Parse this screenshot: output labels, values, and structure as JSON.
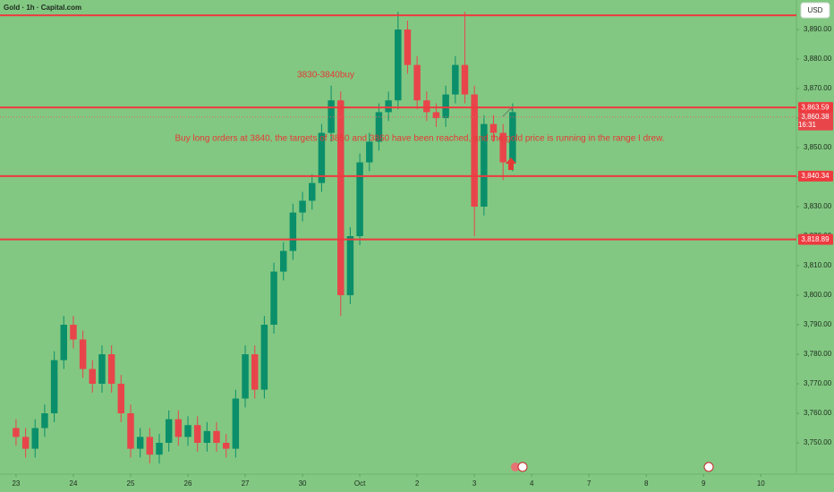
{
  "chart_data": {
    "type": "candlestick",
    "title": "Gold · 1h · Capital.com",
    "currency": "USD",
    "annotations": [
      "3830-3840buy",
      "Buy long orders at 3840, the targets of 3850 and 3860 have been reached, and the gold price is running in the range I drew."
    ],
    "x": [
      0,
      0.167,
      0.333,
      0.5,
      0.667,
      0.833,
      1,
      1.167,
      1.333,
      1.5,
      1.667,
      1.833,
      2,
      2.167,
      2.333,
      2.5,
      2.667,
      2.833,
      3,
      3.167,
      3.333,
      3.5,
      3.667,
      3.833,
      4,
      4.167,
      4.333,
      4.5,
      4.667,
      4.833,
      5,
      5.167,
      5.333,
      5.5,
      5.667,
      5.833,
      6,
      6.167,
      6.333,
      6.5,
      6.667,
      6.833,
      7,
      7.167,
      7.333,
      7.5,
      7.667,
      7.833,
      8,
      8.167,
      8.333,
      8.5,
      8.667
    ],
    "open": [
      3755,
      3752,
      3748,
      3755,
      3760,
      3778,
      3790,
      3785,
      3775,
      3770,
      3780,
      3770,
      3760,
      3748,
      3752,
      3746,
      3750,
      3758,
      3752,
      3756,
      3750,
      3754,
      3750,
      3748,
      3765,
      3780,
      3768,
      3790,
      3808,
      3815,
      3828,
      3832,
      3838,
      3855,
      3866,
      3800,
      3820,
      3845,
      3852,
      3862,
      3866,
      3890,
      3878,
      3866,
      3862,
      3860,
      3868,
      3878,
      3868,
      3830,
      3858,
      3855,
      3845
    ],
    "high": [
      3758,
      3755,
      3758,
      3763,
      3781,
      3793,
      3793,
      3788,
      3778,
      3783,
      3783,
      3773,
      3763,
      3755,
      3755,
      3753,
      3761,
      3761,
      3759,
      3759,
      3757,
      3757,
      3753,
      3768,
      3783,
      3783,
      3793,
      3811,
      3818,
      3831,
      3835,
      3841,
      3858,
      3871,
      3869,
      3823,
      3848,
      3855,
      3865,
      3869,
      3896,
      3893,
      3881,
      3869,
      3865,
      3871,
      3881,
      3896,
      3871,
      3861,
      3861,
      3858,
      3865
    ],
    "low": [
      3749,
      3745,
      3745,
      3752,
      3757,
      3775,
      3782,
      3772,
      3767,
      3767,
      3767,
      3757,
      3745,
      3745,
      3743,
      3743,
      3747,
      3749,
      3749,
      3747,
      3747,
      3747,
      3745,
      3745,
      3762,
      3765,
      3765,
      3787,
      3805,
      3812,
      3825,
      3829,
      3835,
      3852,
      3793,
      3797,
      3817,
      3842,
      3849,
      3859,
      3863,
      3875,
      3863,
      3859,
      3857,
      3857,
      3865,
      3865,
      3820,
      3827,
      3852,
      3839,
      3842
    ],
    "close": [
      3752,
      3748,
      3755,
      3760,
      3778,
      3790,
      3785,
      3775,
      3770,
      3780,
      3770,
      3760,
      3748,
      3752,
      3746,
      3750,
      3758,
      3752,
      3756,
      3750,
      3754,
      3750,
      3748,
      3765,
      3780,
      3768,
      3790,
      3808,
      3815,
      3828,
      3832,
      3838,
      3855,
      3866,
      3800,
      3820,
      3845,
      3852,
      3862,
      3866,
      3890,
      3878,
      3866,
      3862,
      3860,
      3868,
      3878,
      3868,
      3830,
      3858,
      3855,
      3845,
      3862
    ],
    "up_color": "#0a8f6a",
    "down_color": "#e8454a",
    "line_color": "#ee3a3f",
    "top_line": 3894.8,
    "levels": [
      {
        "value": 3863.59,
        "label": "3,863.59"
      },
      {
        "value": 3840.34,
        "label": "3,840.34"
      },
      {
        "value": 3818.89,
        "label": "3,818.89"
      }
    ],
    "last_price": {
      "value": 3860.38,
      "label": "3,860.38",
      "countdown": "16:31"
    },
    "xlim": [
      -0.28,
      13.62
    ],
    "xticks": [
      {
        "value": 0,
        "label": "23"
      },
      {
        "value": 1,
        "label": "24"
      },
      {
        "value": 2,
        "label": "25"
      },
      {
        "value": 3,
        "label": "26"
      },
      {
        "value": 4,
        "label": "27"
      },
      {
        "value": 5,
        "label": "30"
      },
      {
        "value": 6,
        "label": "Oct"
      },
      {
        "value": 7,
        "label": "2"
      },
      {
        "value": 8,
        "label": "3"
      },
      {
        "value": 9,
        "label": "4"
      },
      {
        "value": 10,
        "label": "7"
      },
      {
        "value": 11,
        "label": "8"
      },
      {
        "value": 12,
        "label": "9"
      },
      {
        "value": 13,
        "label": "10"
      }
    ],
    "ylim": [
      3739.4,
      3900
    ],
    "yticks": [
      {
        "value": 3750,
        "label": "3,750.00"
      },
      {
        "value": 3760,
        "label": "3,760.00"
      },
      {
        "value": 3770,
        "label": "3,770.00"
      },
      {
        "value": 3780,
        "label": "3,780.00"
      },
      {
        "value": 3790,
        "label": "3,790.00"
      },
      {
        "value": 3800,
        "label": "3,800.00"
      },
      {
        "value": 3810,
        "label": "3,810.00"
      },
      {
        "value": 3820,
        "label": "3,820.00"
      },
      {
        "value": 3830,
        "label": "3,830.00"
      },
      {
        "value": 3840,
        "label": "3,840.00"
      },
      {
        "value": 3850,
        "label": "3,850.00"
      },
      {
        "value": 3860,
        "label": "3,860.00"
      },
      {
        "value": 3870,
        "label": "3,870.00"
      },
      {
        "value": 3880,
        "label": "3,880.00"
      },
      {
        "value": 3890,
        "label": "3,890.00"
      }
    ]
  }
}
